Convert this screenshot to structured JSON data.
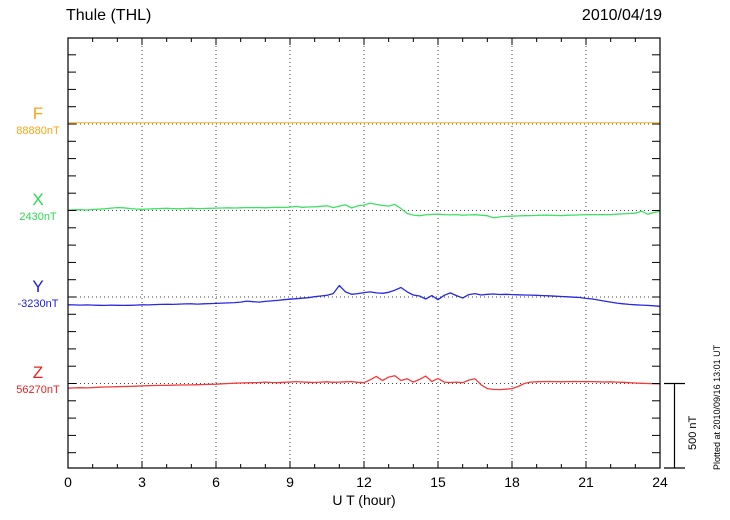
{
  "header": {
    "title": "Thule (THL)",
    "date": "2010/04/19"
  },
  "axes": {
    "x_label": "U T (hour)",
    "x_ticks": [
      "0",
      "3",
      "6",
      "9",
      "12",
      "15",
      "18",
      "21",
      "24"
    ],
    "x_range": [
      0,
      24
    ],
    "minor_tick_interval_hours": 1,
    "grid_interval_hours": 3,
    "grid_style": "dotted"
  },
  "scale_bar": {
    "label": "500 nT",
    "value_nT": 500
  },
  "footer_note": "Plotted at 2010/09/16 13:01 UT",
  "colors": {
    "F_label": "#fca311",
    "F_trace": "#ffc44d",
    "X_label": "#2bd84f",
    "X_trace": "#3fe065",
    "Y_label": "#2020d6",
    "Y_trace": "#2828e0",
    "Z_label": "#ee2020",
    "Z_trace": "#f23b3b",
    "frame": "#000000",
    "grid": "#444444",
    "background": "#ffffff"
  },
  "channels": [
    {
      "id": "F",
      "label": "F",
      "baseline_label": "88880nT",
      "baseline_nT": 88880
    },
    {
      "id": "X",
      "label": "X",
      "baseline_label": "2430nT",
      "baseline_nT": 2430
    },
    {
      "id": "Y",
      "label": "Y",
      "baseline_label": "-3230nT",
      "baseline_nT": -3230
    },
    {
      "id": "Z",
      "label": "Z",
      "baseline_label": "56270nT",
      "baseline_nT": 56270
    }
  ],
  "chart_data": {
    "type": "line",
    "title": "Thule (THL) magnetogram 2010/04/19",
    "xlabel": "U T (hour)",
    "x_start": 0,
    "x_end": 24,
    "x_step": 0.25,
    "y_units": "nT",
    "y_scale_per_division": 500,
    "legend_position": "left-margin baselines",
    "grid": "dotted, every 3 hours and at each channel baseline",
    "series": [
      {
        "name": "F",
        "baseline_nT": 88880,
        "offsets_nT": [
          8,
          8,
          8,
          8,
          8,
          8,
          8,
          8,
          8,
          8,
          8,
          8,
          8,
          8,
          8,
          8,
          8,
          8,
          8,
          8,
          8,
          8,
          8,
          8,
          8,
          8,
          8,
          8,
          8,
          8,
          8,
          8,
          8,
          8,
          8,
          8,
          8,
          8,
          8,
          8,
          8,
          8,
          8,
          8,
          8,
          8,
          8,
          8,
          8,
          8,
          8,
          8,
          8,
          8,
          8,
          8,
          8,
          8,
          8,
          8,
          8,
          8,
          8,
          8,
          8,
          8,
          8,
          8,
          8,
          8,
          8,
          8,
          8,
          8,
          8,
          8,
          8,
          8,
          8,
          8,
          8,
          8,
          8,
          8,
          8,
          8,
          8,
          8,
          8,
          8,
          8,
          8,
          8,
          8,
          8,
          8,
          8
        ]
      },
      {
        "name": "X",
        "baseline_nT": 2430,
        "offsets_nT": [
          2,
          4,
          5,
          3,
          6,
          8,
          10,
          14,
          17,
          16,
          12,
          9,
          7,
          9,
          10,
          12,
          13,
          11,
          10,
          12,
          13,
          11,
          12,
          13,
          14,
          15,
          16,
          15,
          16,
          18,
          17,
          18,
          16,
          18,
          19,
          18,
          20,
          24,
          19,
          21,
          22,
          25,
          28,
          17,
          26,
          34,
          15,
          28,
          32,
          44,
          36,
          30,
          26,
          36,
          12,
          -18,
          -27,
          -31,
          -26,
          -23,
          -22,
          -24,
          -26,
          -24,
          -28,
          -26,
          -25,
          -28,
          -31,
          -44,
          -38,
          -35,
          -34,
          -32,
          -31,
          -30,
          -29,
          -28,
          -28,
          -29,
          -30,
          -28,
          -27,
          -26,
          -25,
          -24,
          -24,
          -25,
          -24,
          -22,
          -20,
          -18,
          -16,
          -4,
          -22,
          -12,
          -4
        ]
      },
      {
        "name": "Y",
        "baseline_nT": -3230,
        "offsets_nT": [
          -46,
          -47,
          -48,
          -47,
          -48,
          -49,
          -50,
          -48,
          -49,
          -50,
          -49,
          -48,
          -46,
          -47,
          -45,
          -44,
          -43,
          -44,
          -42,
          -41,
          -40,
          -42,
          -40,
          -39,
          -38,
          -36,
          -35,
          -33,
          -30,
          -24,
          -28,
          -30,
          -26,
          -23,
          -20,
          -16,
          -13,
          -10,
          -7,
          -4,
          2,
          6,
          10,
          20,
          68,
          30,
          16,
          20,
          26,
          30,
          24,
          22,
          28,
          40,
          56,
          30,
          12,
          6,
          -12,
          8,
          -16,
          10,
          24,
          8,
          -6,
          14,
          20,
          12,
          16,
          18,
          15,
          16,
          14,
          13,
          12,
          11,
          10,
          8,
          7,
          5,
          3,
          1,
          -1,
          -3,
          -8,
          -12,
          -18,
          -24,
          -30,
          -36,
          -40,
          -44,
          -46,
          -48,
          -50,
          -52,
          -55
        ]
      },
      {
        "name": "Z",
        "baseline_nT": 56270,
        "offsets_nT": [
          -28,
          -26,
          -25,
          -26,
          -24,
          -22,
          -21,
          -20,
          -19,
          -18,
          -17,
          -16,
          -14,
          -13,
          -12,
          -11,
          -11,
          -10,
          -9,
          -9,
          -8,
          -7,
          -6,
          -5,
          -4,
          -2,
          0,
          2,
          3,
          4,
          5,
          6,
          8,
          6,
          5,
          7,
          9,
          11,
          9,
          7,
          6,
          8,
          10,
          7,
          8,
          10,
          11,
          7,
          5,
          22,
          42,
          18,
          38,
          46,
          18,
          28,
          8,
          24,
          44,
          12,
          30,
          8,
          6,
          8,
          5,
          20,
          28,
          -8,
          -30,
          -35,
          -36,
          -34,
          -30,
          -18,
          0,
          8,
          10,
          11,
          12,
          11,
          10,
          11,
          12,
          11,
          12,
          11,
          10,
          9,
          10,
          8,
          7,
          5,
          3,
          1,
          0,
          -1,
          -2
        ]
      }
    ]
  }
}
